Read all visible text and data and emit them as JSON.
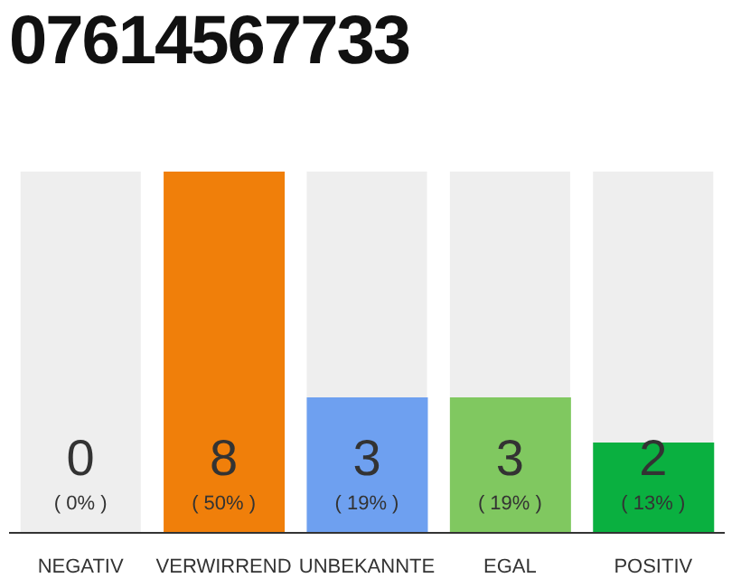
{
  "chart_data": {
    "type": "bar",
    "title": "07614567733",
    "categories": [
      "NEGATIV",
      "VERWIRREND",
      "UNBEKANNTE",
      "EGAL",
      "POSITIV"
    ],
    "values": [
      0,
      8,
      3,
      3,
      2
    ],
    "colors": [
      "#cccccc",
      "#f07f0a",
      "#6ea0f0",
      "#80c860",
      "#0ab040"
    ],
    "value_labels": [
      "0",
      "8",
      "3",
      "3",
      "2"
    ],
    "annotations": [
      "( 0% )",
      "( 50% )",
      "( 19% )",
      "( 19% )",
      "( 13% )"
    ],
    "bands": [
      {
        "axis": "x",
        "from": "NEGATIV",
        "to": "NEGATIV",
        "color": "#eeeeee"
      },
      {
        "axis": "x",
        "from": "UNBEKANNTE",
        "to": "UNBEKANNTE",
        "color": "#eeeeee"
      },
      {
        "axis": "x",
        "from": "EGAL",
        "to": "EGAL",
        "color": "#eeeeee"
      },
      {
        "axis": "x",
        "from": "POSITIV",
        "to": "POSITIV",
        "color": "#eeeeee"
      }
    ],
    "tick_labels": "x"
  }
}
